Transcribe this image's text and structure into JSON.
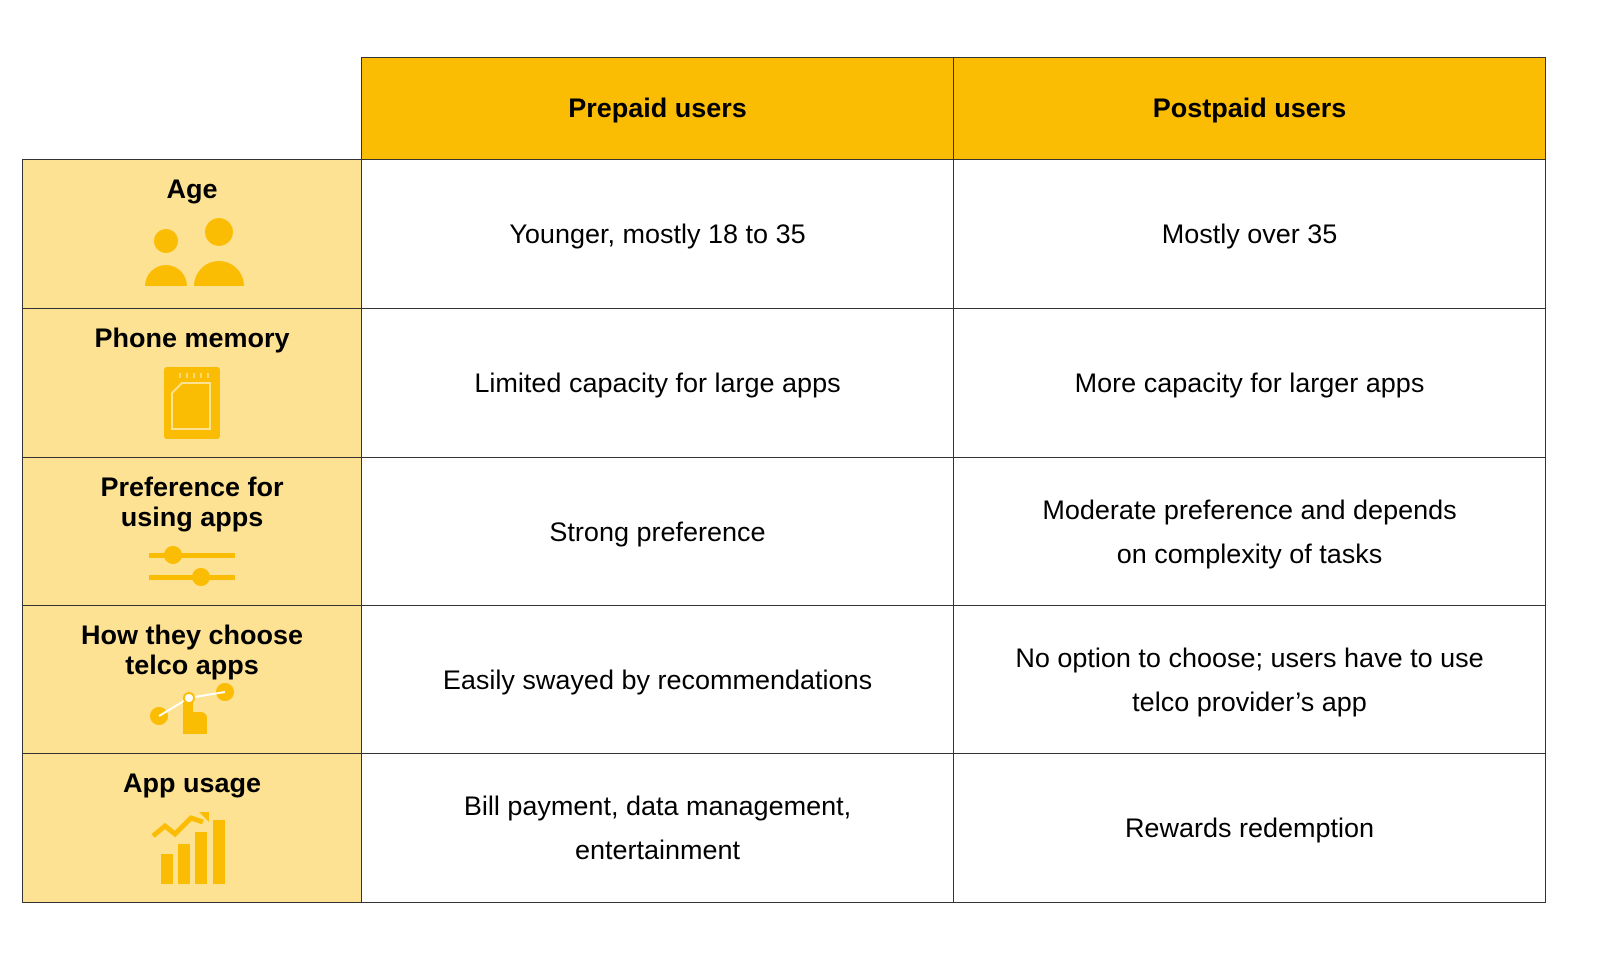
{
  "table": {
    "columns": [
      "Prepaid users",
      "Postpaid users"
    ],
    "rows": [
      {
        "label": "Age",
        "cells": [
          "Younger, mostly 18 to 35",
          "Mostly over 35"
        ]
      },
      {
        "label": "Phone memory",
        "cells": [
          "Limited capacity for large apps",
          "More capacity for larger apps"
        ]
      },
      {
        "label": "Preference for using apps",
        "cells": [
          "Strong preference",
          "Moderate preference and depends on complexity of tasks"
        ]
      },
      {
        "label": "How they choose telco apps",
        "cells": [
          "Easily swayed by recommendations",
          "No option to choose; users have to use telco provider’s app"
        ]
      },
      {
        "label": "App usage",
        "cells": [
          "Bill payment, data management, entertainment",
          "Rewards redemption"
        ]
      }
    ]
  }
}
